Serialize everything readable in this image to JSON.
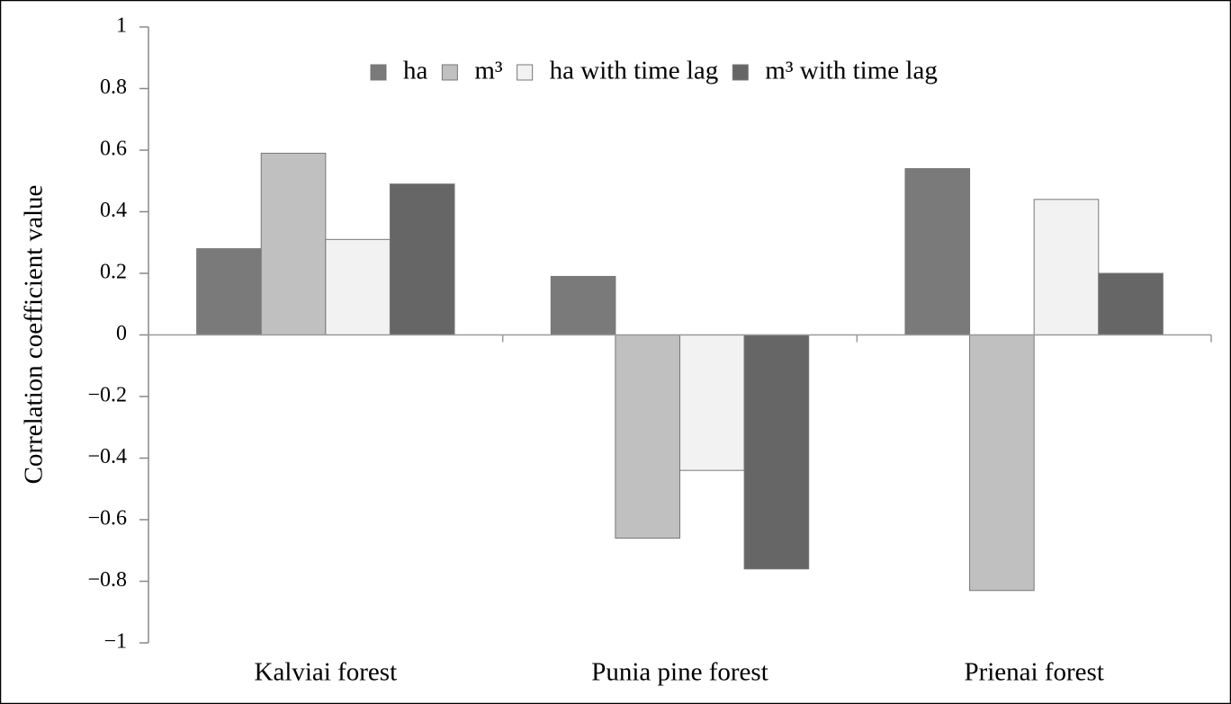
{
  "chart_data": {
    "type": "bar",
    "y_label": "Correlation coefficient value",
    "categories": [
      "Kalviai forest",
      "Punia pine forest",
      "Prienai forest"
    ],
    "series": [
      {
        "name": "ha",
        "color": "#7a7a7a",
        "values": [
          0.28,
          0.19,
          0.54
        ]
      },
      {
        "name": "m³",
        "color": "#c0c0c0",
        "values": [
          0.59,
          -0.66,
          -0.83
        ]
      },
      {
        "name": "ha with time lag",
        "color": "#f2f2f2",
        "values": [
          0.31,
          -0.44,
          0.44
        ]
      },
      {
        "name": "m³ with time lag",
        "color": "#666666",
        "values": [
          0.49,
          -0.76,
          0.2
        ]
      }
    ],
    "ylim": [
      -1,
      1
    ],
    "yticks": [
      {
        "value": -1,
        "label": "−1"
      },
      {
        "value": -0.8,
        "label": "−0.8"
      },
      {
        "value": -0.6,
        "label": "−0.6"
      },
      {
        "value": -0.4,
        "label": "−0.4"
      },
      {
        "value": -0.2,
        "label": "−0.2"
      },
      0,
      0.2,
      0.4,
      0.6,
      0.8,
      1
    ],
    "grid": false,
    "legend": "top"
  }
}
